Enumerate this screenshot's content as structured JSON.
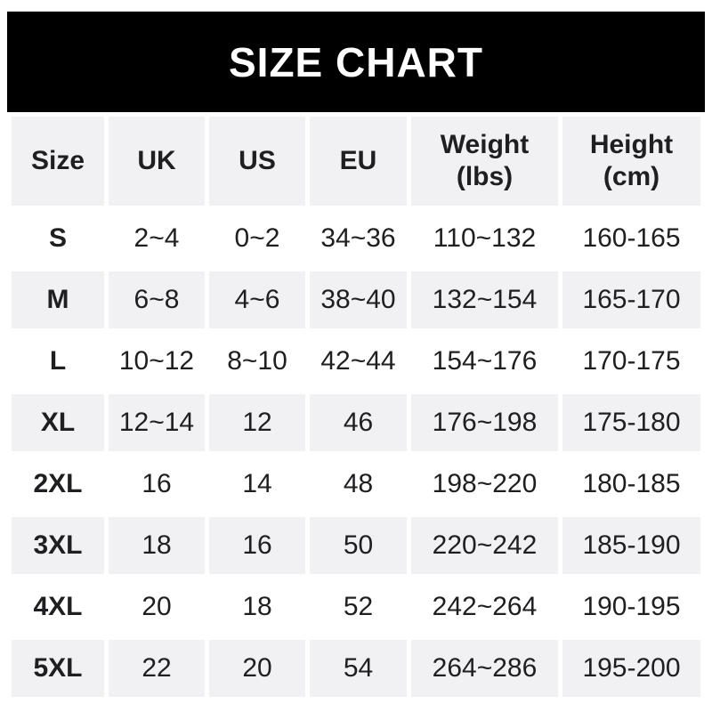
{
  "chart_data": {
    "type": "table",
    "title": "SIZE CHART",
    "columns": [
      "Size",
      "UK",
      "US",
      "EU",
      "Weight (lbs)",
      "Height (cm)"
    ],
    "rows": [
      {
        "size": "S",
        "uk": "2~4",
        "us": "0~2",
        "eu": "34~36",
        "weight": "110~132",
        "height": "160-165"
      },
      {
        "size": "M",
        "uk": "6~8",
        "us": "4~6",
        "eu": "38~40",
        "weight": "132~154",
        "height": "165-170"
      },
      {
        "size": "L",
        "uk": "10~12",
        "us": "8~10",
        "eu": "42~44",
        "weight": "154~176",
        "height": "170-175"
      },
      {
        "size": "XL",
        "uk": "12~14",
        "us": "12",
        "eu": "46",
        "weight": "176~198",
        "height": "175-180"
      },
      {
        "size": "2XL",
        "uk": "16",
        "us": "14",
        "eu": "48",
        "weight": "198~220",
        "height": "180-185"
      },
      {
        "size": "3XL",
        "uk": "18",
        "us": "16",
        "eu": "50",
        "weight": "220~242",
        "height": "185-190"
      },
      {
        "size": "4XL",
        "uk": "20",
        "us": "18",
        "eu": "52",
        "weight": "242~264",
        "height": "190-195"
      },
      {
        "size": "5XL",
        "uk": "22",
        "us": "20",
        "eu": "54",
        "weight": "264~286",
        "height": "195-200"
      }
    ],
    "layout": {
      "banner_bg": "#000000",
      "banner_text_color": "#ffffff",
      "cell_bg": "#f1f0f2",
      "text_color": "#1f1f22",
      "row_striping": "header gray, then white/gray alternating"
    }
  }
}
